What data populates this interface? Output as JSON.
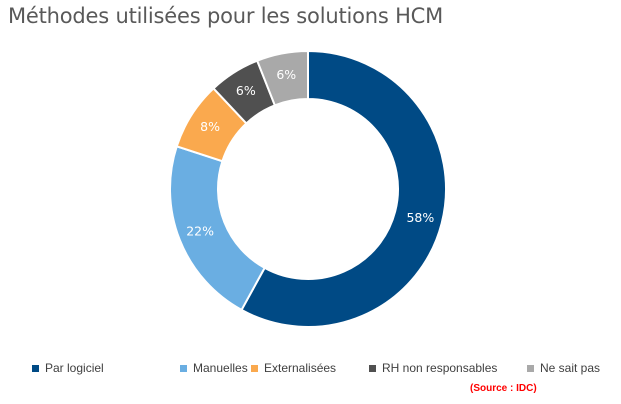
{
  "chart_data": {
    "type": "pie",
    "style": "donut",
    "title": "Méthodes utilisées pour les solutions HCM",
    "categories": [
      "Par logiciel",
      "Manuelles",
      "Externalisées",
      "RH non responsables",
      "Ne sait pas"
    ],
    "values": [
      58,
      22,
      8,
      6,
      6
    ],
    "value_labels": [
      "58%",
      "22%",
      "8%",
      "6%",
      "6%"
    ],
    "colors": [
      "#004A85",
      "#6AAEE2",
      "#FAA94E",
      "#505050",
      "#A9A9A9"
    ],
    "legend_position": "bottom",
    "start_angle": "top, clockwise"
  },
  "source": "(Source : IDC)"
}
